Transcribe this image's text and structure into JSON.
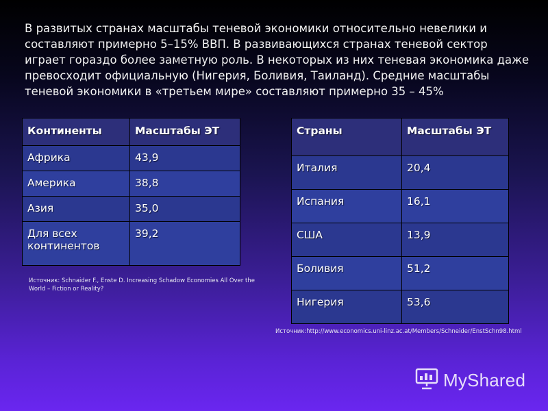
{
  "intro": {
    "text": "В развитых странах масштабы теневой экономики относительно невелики и составляют примерно 5–15% ВВП. В развивающихся странах теневой сектор играет гораздо более заметную роль. В некоторых из них теневая экономика даже превосходит официальную (Нигерия, Боливия, Таиланд). Средние масштабы теневой экономики в «третьем мире» составляют примерно 35 – 45%"
  },
  "continents_table": {
    "headers": [
      "Континенты",
      "Масштабы ЭТ"
    ],
    "rows": [
      {
        "name": "Африка",
        "value": "43,9"
      },
      {
        "name": "Америка",
        "value": "38,8"
      },
      {
        "name": "Азия",
        "value": "35,0"
      },
      {
        "name": "Для всех континентов",
        "value": "39,2"
      }
    ]
  },
  "countries_table": {
    "headers": [
      "Страны",
      "Масштабы ЭТ"
    ],
    "rows": [
      {
        "name": "Италия",
        "value": "20,4"
      },
      {
        "name": "Испания",
        "value": "16,1"
      },
      {
        "name": "США",
        "value": "13,9"
      },
      {
        "name": "Боливия",
        "value": "51,2"
      },
      {
        "name": "Нигерия",
        "value": "53,6"
      }
    ]
  },
  "source_left": "Источник: Schnaider F., Enste D. Increasing Schadow Economies All Over the World – Fiction or Reality?",
  "source_right": "Источник:http://www.economics.uni-linz.ac.at/Members/Schneider/EnstSchn98.html",
  "watermark": {
    "text": "MyShared",
    "icon": "presentation-board-icon"
  }
}
